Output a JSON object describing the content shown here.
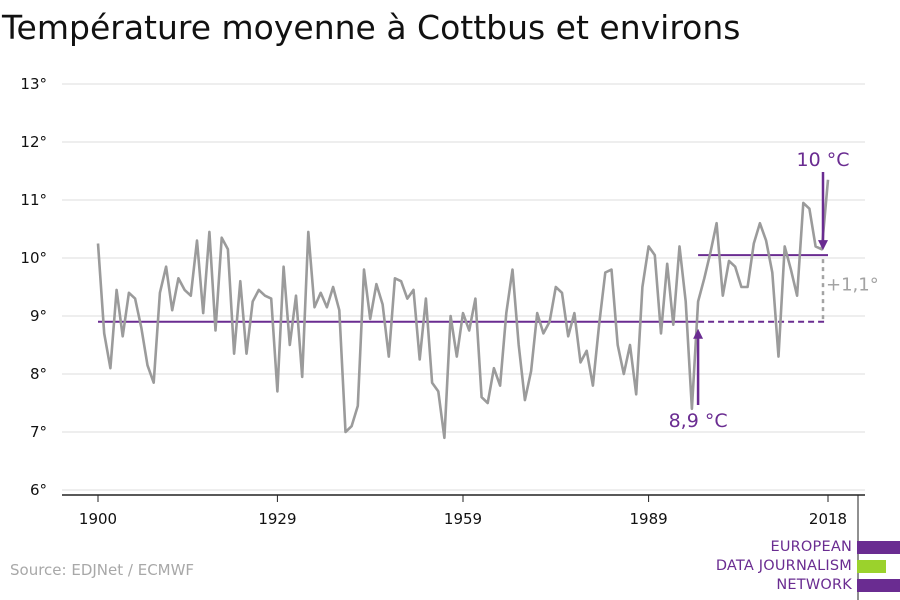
{
  "title": "Température moyenne à Cottbus et environs",
  "source": "Source: EDJNet / ECMWF",
  "logo": {
    "lines": [
      "EUROPEAN",
      "DATA JOURNALISM",
      "NETWORK"
    ],
    "colors": {
      "purple": "#6a2c91",
      "green": "#9bd22c"
    }
  },
  "colors": {
    "series": "#9b9b9b",
    "accent": "#6a2c91",
    "diff": "#a3a3a3",
    "grid": "#dcdcdc"
  },
  "chart_data": {
    "type": "line",
    "x_start": 1900,
    "x_end": 2018,
    "xticks": [
      1900,
      1929,
      1959,
      1989,
      2018
    ],
    "xtick_labels": [
      "1900",
      "1929",
      "1959",
      "1989",
      "2018"
    ],
    "ylim": [
      6,
      13
    ],
    "yticks": [
      6,
      7,
      8,
      9,
      10,
      11,
      12,
      13
    ],
    "ytick_labels": [
      "6°",
      "7°",
      "8°",
      "9°",
      "10°",
      "11°",
      "12°",
      "13°"
    ],
    "grid": true,
    "series": [
      {
        "values": [
          10.25,
          8.7,
          8.1,
          9.45,
          8.65,
          9.4,
          9.3,
          8.8,
          8.15,
          7.85,
          9.4,
          9.85,
          9.1,
          9.65,
          9.45,
          9.35,
          10.3,
          9.05,
          10.45,
          8.75,
          10.35,
          10.15,
          8.35,
          9.6,
          8.35,
          9.25,
          9.45,
          9.35,
          9.3,
          7.7,
          9.85,
          8.5,
          9.35,
          7.95,
          10.45,
          9.15,
          9.4,
          9.15,
          9.5,
          9.1,
          7.0,
          7.1,
          7.45,
          9.8,
          8.95,
          9.55,
          9.2,
          8.3,
          9.65,
          9.6,
          9.3,
          9.45,
          8.25,
          9.3,
          7.85,
          7.7,
          6.9,
          9.0,
          8.3,
          9.05,
          8.75,
          9.3,
          7.6,
          7.5,
          8.1,
          7.8,
          9.05,
          9.8,
          8.5,
          7.55,
          8.05,
          9.05,
          8.7,
          8.9,
          9.5,
          9.4,
          8.65,
          9.05,
          8.2,
          8.4,
          7.8,
          8.85,
          9.75,
          9.8,
          8.5,
          8.0,
          8.5,
          7.65,
          9.5,
          10.2,
          10.05,
          8.7,
          9.9,
          8.85,
          10.2,
          9.25,
          7.4,
          9.25,
          9.65,
          10.1,
          10.6,
          9.35,
          9.95,
          9.85,
          9.5,
          9.5,
          10.25,
          10.6,
          10.3,
          9.75,
          8.3,
          10.2,
          9.8,
          9.35,
          10.95,
          10.85,
          10.2,
          10.15,
          11.35
        ]
      }
    ],
    "reference_period_mean": {
      "value": 8.9,
      "label": "8,9 °C",
      "from": 1900,
      "to": 1997
    },
    "recent_period_mean": {
      "value": 10.05,
      "label": "10 °C",
      "from": 1997,
      "to": 2018
    },
    "difference_label": "+1,1°"
  }
}
